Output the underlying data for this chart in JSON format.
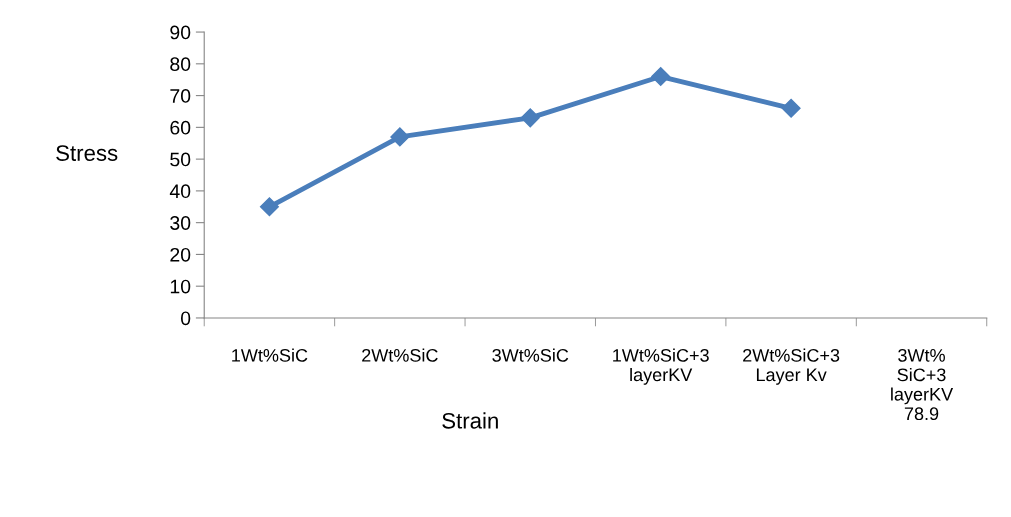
{
  "chart_data": {
    "type": "line",
    "xlabel": "Strain",
    "ylabel": "Stress",
    "categories": [
      "1Wt%SiC",
      "2Wt%SiC",
      "3Wt%SiC",
      "1Wt%SiC+3\nlayerKV",
      "2Wt%SiC+3\nLayer Kv",
      "3Wt%\nSiC+3\nlayerKV\n78.9"
    ],
    "series": [
      {
        "color": "#4a7ebb",
        "values": [
          35,
          57,
          63,
          76,
          66,
          null
        ]
      }
    ],
    "ylim": [
      0,
      90
    ],
    "yticks": [
      0,
      10,
      20,
      30,
      40,
      50,
      60,
      70,
      80,
      90
    ],
    "marker": "diamond",
    "line_style": "solid",
    "grid": false,
    "legend": false
  }
}
